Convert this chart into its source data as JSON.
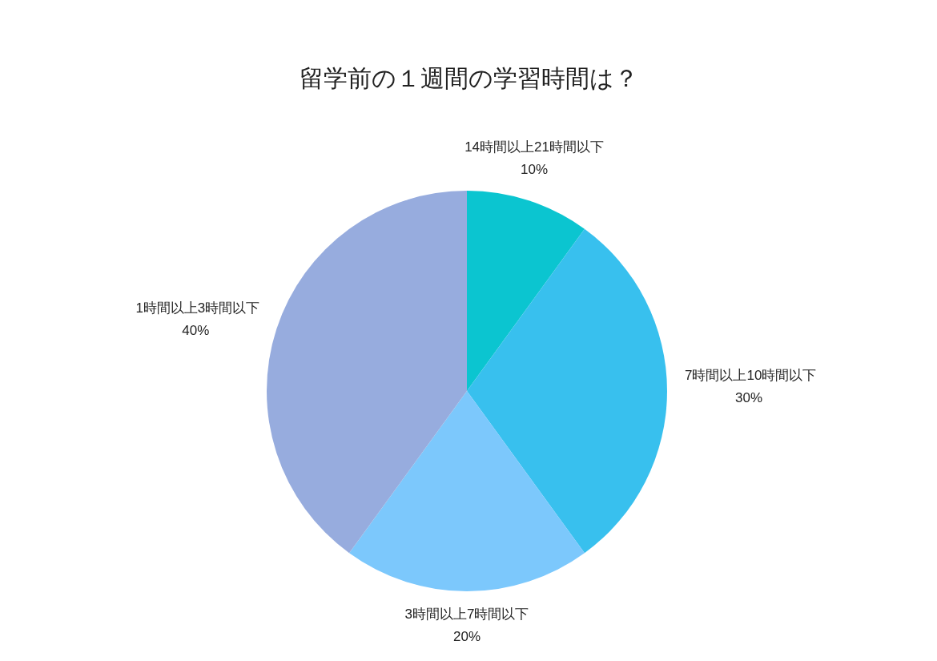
{
  "chart_data": {
    "type": "pie",
    "title": "留学前の１週間の学習時間は？",
    "categories": [
      "14時間以上21時間以下",
      "7時間以上10時間以下",
      "3時間以上7時間以下",
      "1時間以上3時間以下"
    ],
    "values": [
      10,
      30,
      20,
      40
    ],
    "value_labels": [
      "10%",
      "30%",
      "20%",
      "40%"
    ],
    "colors": [
      "#0bc5d0",
      "#38c0ee",
      "#7cc8fc",
      "#97acde"
    ],
    "legend": false
  }
}
